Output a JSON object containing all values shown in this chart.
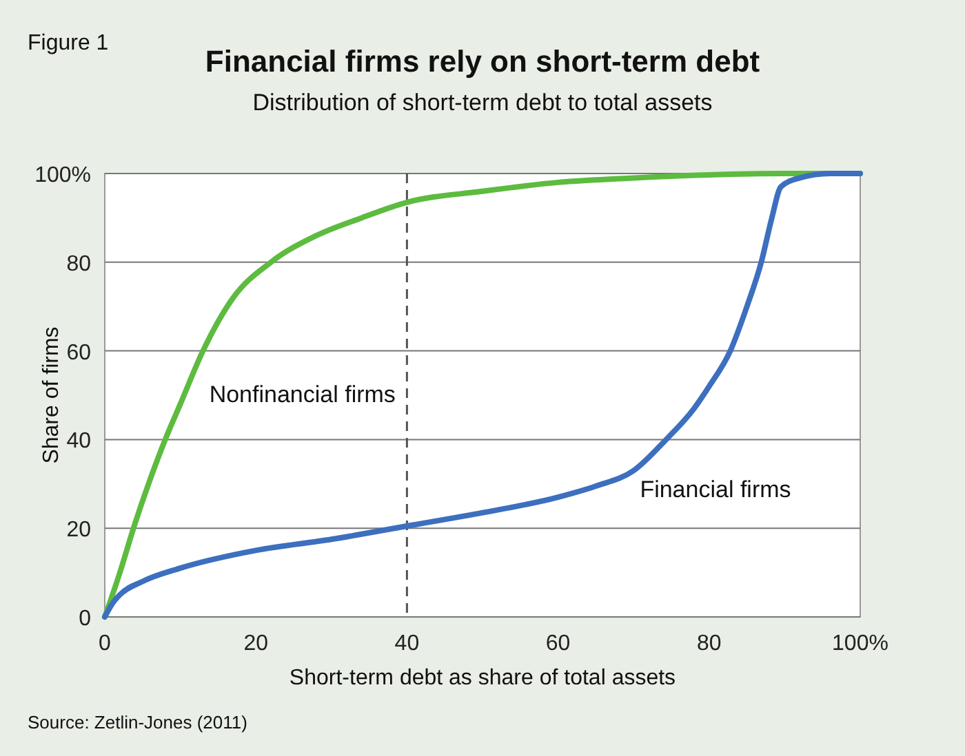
{
  "chart_data": {
    "type": "line",
    "title": "Financial firms rely on short-term debt",
    "subtitle": "Distribution of short-term debt to total assets",
    "xlabel": "Short-term debt as share of total assets",
    "ylabel": "Share of firms",
    "annotations": [
      "Figure 1",
      "Source: Zetlin-Jones (2011)"
    ],
    "series": [
      {
        "name": "Nonfinancial firms",
        "color": "#5dbb3f",
        "x": [
          0,
          2,
          3.8,
          6,
          8,
          10,
          13,
          17,
          22,
          28,
          34,
          40,
          50,
          60,
          70,
          80,
          90,
          100
        ],
        "values": [
          0,
          10,
          20,
          31,
          40,
          48,
          60,
          72,
          80,
          86,
          90,
          93.5,
          96,
          98,
          99,
          99.7,
          100,
          100
        ]
      },
      {
        "name": "Financial firms",
        "color": "#3d6fbf",
        "x": [
          0,
          1,
          2,
          5,
          10,
          20,
          30,
          40,
          50,
          60,
          65,
          70,
          74.3,
          78,
          80,
          82.8,
          85,
          86.9,
          88.3,
          89.5,
          92,
          96,
          100
        ],
        "values": [
          0,
          3,
          5,
          8,
          11,
          15,
          17.5,
          20.5,
          23.5,
          27,
          29.5,
          33,
          40,
          47,
          52,
          60,
          70,
          80,
          90,
          97,
          99,
          100,
          100
        ]
      }
    ],
    "xlim": [
      0,
      100
    ],
    "ylim": [
      0,
      100
    ],
    "xticks": [
      0,
      20,
      40,
      60,
      80,
      {
        "value": 100,
        "label": "100%"
      }
    ],
    "yticks": [
      0,
      20,
      40,
      60,
      80,
      {
        "value": 100,
        "label": "100%"
      }
    ],
    "grid": "y",
    "line_style": "solid",
    "marker": "none",
    "ref_lines": [
      {
        "axis": "x",
        "value": 40,
        "color": "#555555",
        "line_style": "dashed"
      }
    ]
  }
}
